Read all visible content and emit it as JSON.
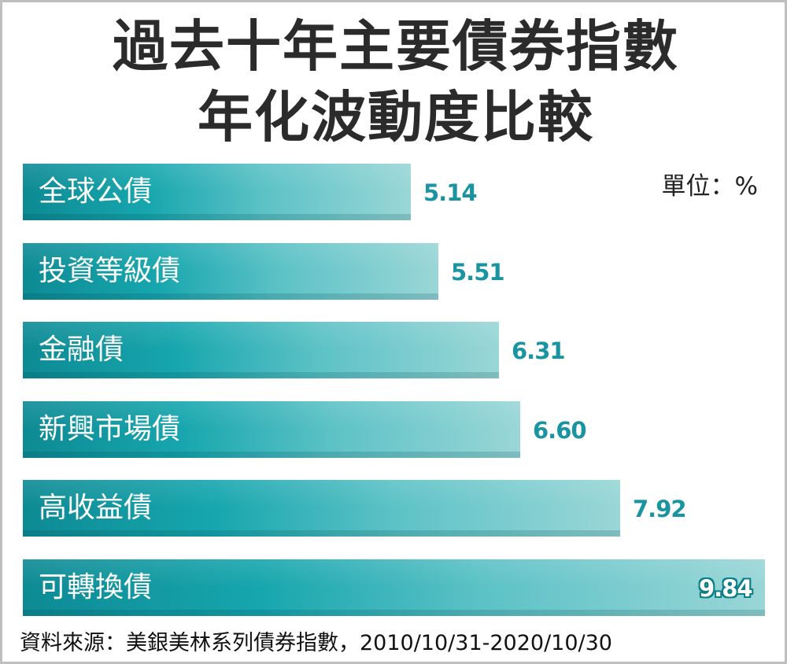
{
  "chart_data": {
    "type": "bar",
    "orientation": "horizontal",
    "title": "過去十年主要債券指數年化波動度比較",
    "title_lines": [
      "過去十年主要債券指數",
      "年化波動度比較"
    ],
    "unit_label": "單位：%",
    "categories": [
      "全球公債",
      "投資等級債",
      "金融債",
      "新興市場債",
      "高收益債",
      "可轉換債"
    ],
    "values": [
      5.14,
      5.51,
      6.31,
      6.6,
      7.92,
      9.84
    ],
    "value_labels": [
      "5.14",
      "5.51",
      "6.31",
      "6.60",
      "7.92",
      "9.84"
    ],
    "xlim": [
      0,
      9.84
    ],
    "grid": false,
    "legend": "none",
    "colors": {
      "bar_dark": "#0d8a94",
      "bar_light": "#9ad6d7",
      "value_text": "#1a94a0"
    },
    "source": "資料來源：美銀美林系列債券指數，2010/10/31-2020/10/30"
  }
}
